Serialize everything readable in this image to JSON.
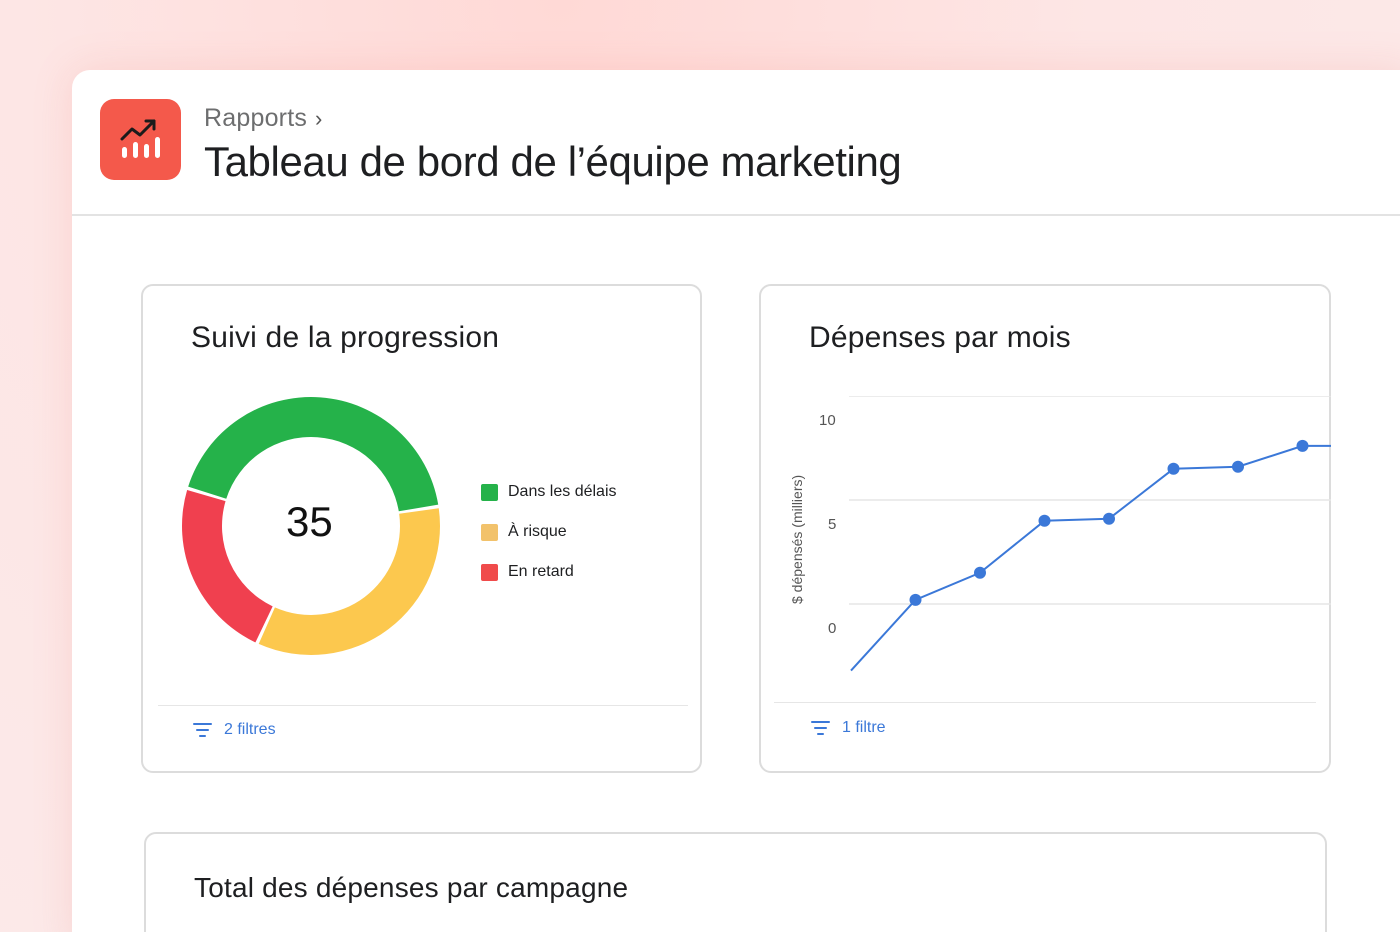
{
  "header": {
    "breadcrumb": "Rapports",
    "breadcrumb_chevron": "›",
    "title": "Tableau de bord de l’équipe marketing",
    "app_icon": "report-chart-icon",
    "accent": "#f4594b"
  },
  "progress_card": {
    "title": "Suivi de la progression",
    "total": "35",
    "filter_label": "2 filtres",
    "legend": [
      {
        "label": "Dans les délais",
        "color": "#25b24a"
      },
      {
        "label": "À risque",
        "color": "#f2c26b"
      },
      {
        "label": "En retard",
        "color": "#f04b4b"
      }
    ]
  },
  "spend_card": {
    "title": "Dépenses par mois",
    "filter_label": "1 filtre"
  },
  "campaign_card": {
    "title": "Total des dépenses par campagne"
  },
  "chart_data": [
    {
      "type": "pie",
      "title": "Suivi de la progression",
      "center_label": "35",
      "categories": [
        "Dans les délais",
        "À risque",
        "En retard"
      ],
      "values": [
        15,
        12,
        8
      ],
      "colors": [
        "#25b24a",
        "#fcc84e",
        "#f0404f"
      ],
      "donut": true,
      "legend": "right"
    },
    {
      "type": "line",
      "title": "Dépenses par mois",
      "ylabel": "$ dépensés (milliers)",
      "xlabel": "",
      "y_ticks": [
        0,
        5,
        10
      ],
      "ylim": [
        -3.2,
        10
      ],
      "grid": true,
      "x": [
        0,
        1,
        2,
        3,
        4,
        5,
        6,
        7
      ],
      "values": [
        -3.2,
        0.2,
        1.5,
        4.0,
        4.1,
        6.5,
        6.6,
        7.6
      ],
      "markers_from_index": 1,
      "color": "#3b78d8"
    }
  ]
}
